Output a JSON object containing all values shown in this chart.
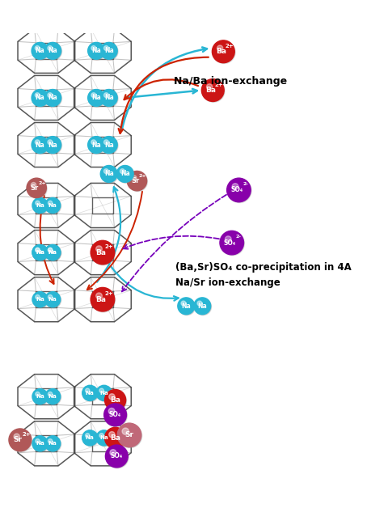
{
  "bg_color": "#ffffff",
  "panel1_label": "Na/Ba ion-exchange",
  "panel2_label1": "(Ba,Sr)SO₄ co-precipitation in 4A",
  "panel2_label2": "Na/Sr ion-exchange",
  "ion_colors": {
    "Na": "#29b6d4",
    "Ba": "#cc1515",
    "Sr": "#b06060",
    "SO4": "#8800aa"
  },
  "cage_color_dark": "#444444",
  "cage_color_light": "#aaaaaa",
  "cage_linewidth": 1.2,
  "arrow_cyan": "#29b6d4",
  "arrow_red": "#cc2200",
  "arrow_purple": "#7700bb"
}
